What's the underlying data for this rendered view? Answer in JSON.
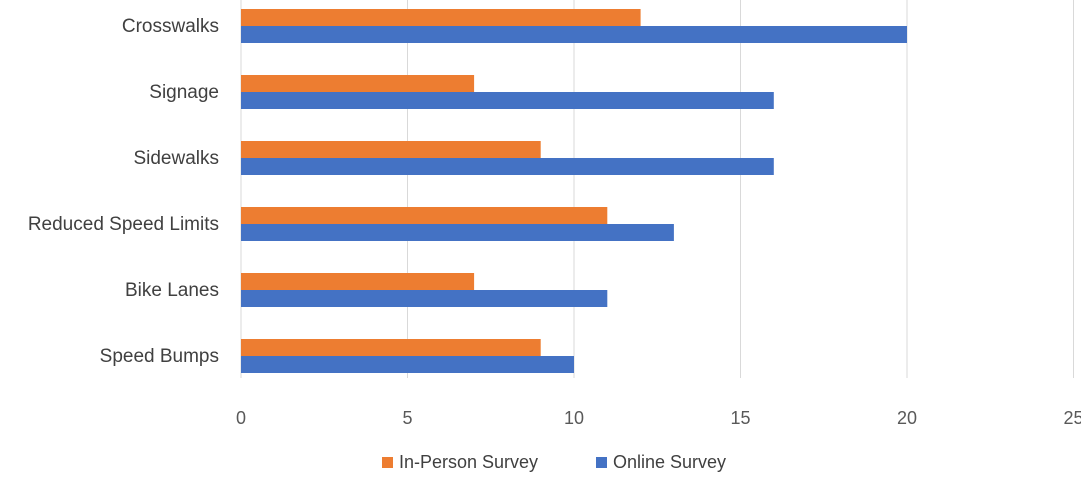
{
  "chart_data": {
    "type": "bar",
    "orientation": "horizontal",
    "categories": [
      "Crosswalks",
      "Signage",
      "Sidewalks",
      "Reduced Speed Limits",
      "Bike Lanes",
      "Speed Bumps"
    ],
    "series": [
      {
        "name": "In-Person Survey",
        "color": "#ED7D31",
        "values": [
          12,
          7,
          9,
          11,
          7,
          9
        ]
      },
      {
        "name": "Online Survey",
        "color": "#4472C4",
        "values": [
          20,
          16,
          16,
          13,
          11,
          10
        ]
      }
    ],
    "xticks": [
      0,
      5,
      10,
      15,
      20,
      25
    ],
    "xlim": [
      0,
      25
    ],
    "grid": true,
    "legend_position": "bottom"
  }
}
